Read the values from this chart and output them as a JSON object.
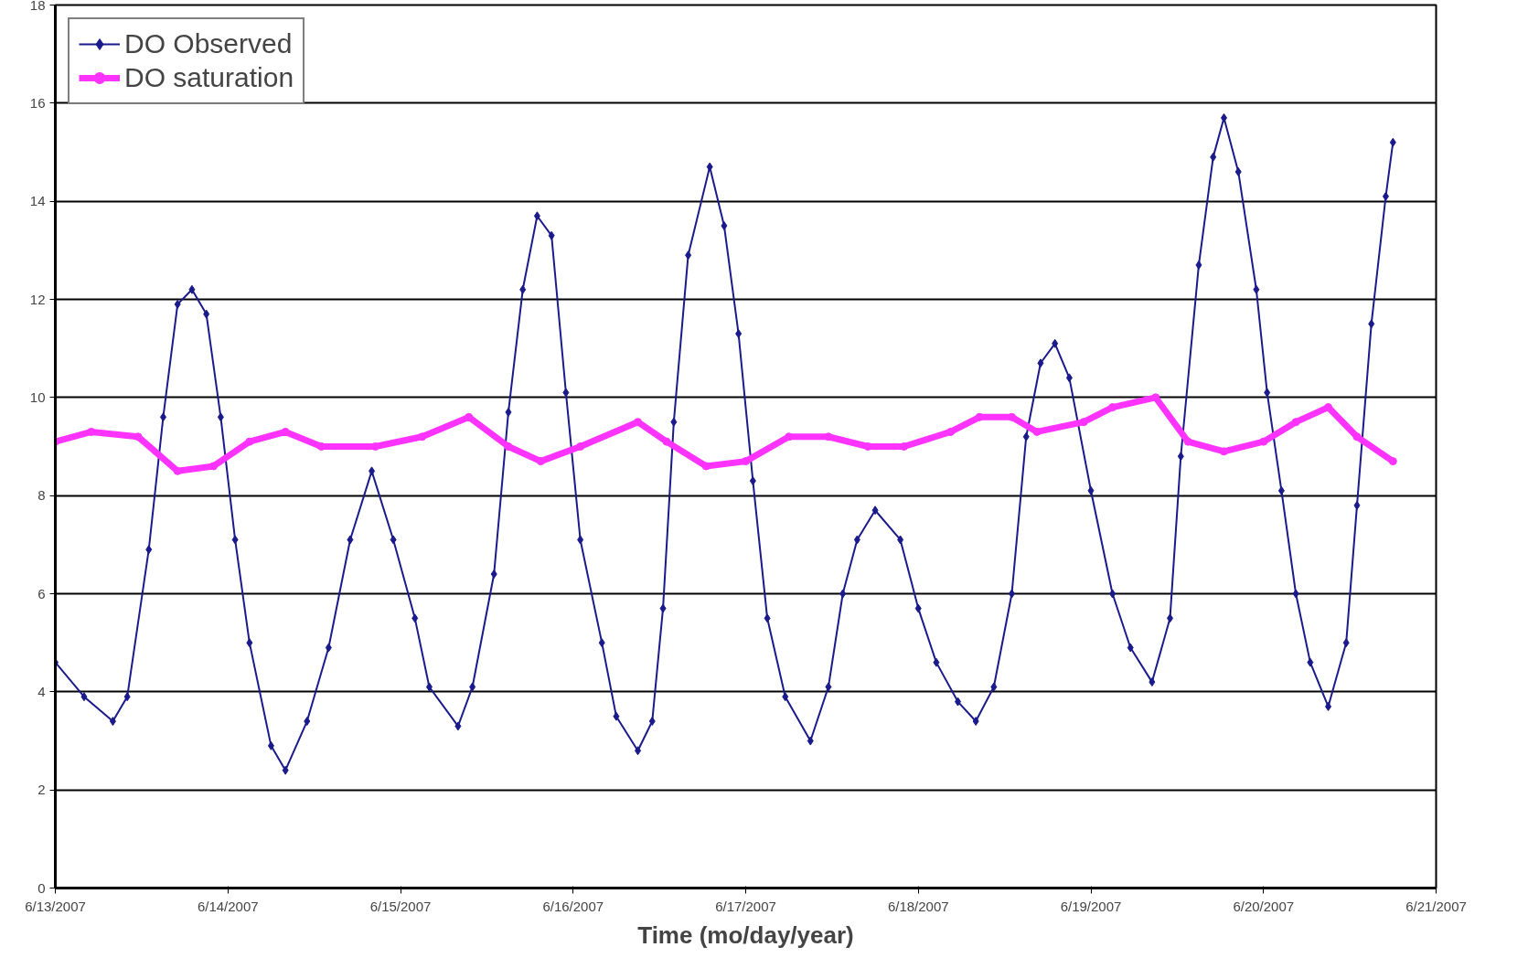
{
  "chart_data": {
    "type": "line",
    "xlabel": "Time (mo/day/year)",
    "xlim": [
      "2007-06-13",
      "2007-06-21"
    ],
    "xticks": [
      {
        "value": "2007-06-13",
        "label": "6/13/2007"
      },
      {
        "value": "2007-06-14",
        "label": "6/14/2007"
      },
      {
        "value": "2007-06-15",
        "label": "6/15/2007"
      },
      {
        "value": "2007-06-16",
        "label": "6/16/2007"
      },
      {
        "value": "2007-06-17",
        "label": "6/17/2007"
      },
      {
        "value": "2007-06-18",
        "label": "6/18/2007"
      },
      {
        "value": "2007-06-19",
        "label": "6/19/2007"
      },
      {
        "value": "2007-06-20",
        "label": "6/20/2007"
      },
      {
        "value": "2007-06-21",
        "label": "6/21/2007"
      }
    ],
    "ylim": [
      0,
      18
    ],
    "yticks": [
      0,
      2,
      4,
      6,
      8,
      10,
      12,
      14,
      16,
      18
    ],
    "grid": "y",
    "legend": "top left",
    "series": [
      {
        "name": "DO Observed",
        "color": "#1a1a8c",
        "marker": "diamond",
        "x": [
          "2007-06-13T00:00",
          "2007-06-13T04:00",
          "2007-06-13T08:00",
          "2007-06-13T10:00",
          "2007-06-13T13:00",
          "2007-06-13T15:00",
          "2007-06-13T17:00",
          "2007-06-13T19:00",
          "2007-06-13T21:00",
          "2007-06-13T23:00",
          "2007-06-14T01:00",
          "2007-06-14T03:00",
          "2007-06-14T06:00",
          "2007-06-14T08:00",
          "2007-06-14T11:00",
          "2007-06-14T14:00",
          "2007-06-14T17:00",
          "2007-06-14T20:00",
          "2007-06-14T23:00",
          "2007-06-15T02:00",
          "2007-06-15T04:00",
          "2007-06-15T08:00",
          "2007-06-15T10:00",
          "2007-06-15T13:00",
          "2007-06-15T15:00",
          "2007-06-15T17:00",
          "2007-06-15T19:00",
          "2007-06-15T21:00",
          "2007-06-15T23:00",
          "2007-06-16T01:00",
          "2007-06-16T04:00",
          "2007-06-16T06:00",
          "2007-06-16T09:00",
          "2007-06-16T11:00",
          "2007-06-16T12:30",
          "2007-06-16T14:00",
          "2007-06-16T16:00",
          "2007-06-16T19:00",
          "2007-06-16T21:00",
          "2007-06-16T23:00",
          "2007-06-17T01:00",
          "2007-06-17T03:00",
          "2007-06-17T05:30",
          "2007-06-17T09:00",
          "2007-06-17T11:30",
          "2007-06-17T13:30",
          "2007-06-17T15:30",
          "2007-06-17T18:00",
          "2007-06-17T21:30",
          "2007-06-18T00:00",
          "2007-06-18T02:30",
          "2007-06-18T05:30",
          "2007-06-18T08:00",
          "2007-06-18T10:30",
          "2007-06-18T13:00",
          "2007-06-18T15:00",
          "2007-06-18T17:00",
          "2007-06-18T19:00",
          "2007-06-18T21:00",
          "2007-06-19T00:00",
          "2007-06-19T03:00",
          "2007-06-19T05:30",
          "2007-06-19T08:30",
          "2007-06-19T11:00",
          "2007-06-19T12:30",
          "2007-06-19T15:00",
          "2007-06-19T17:00",
          "2007-06-19T18:30",
          "2007-06-19T20:30",
          "2007-06-19T23:00",
          "2007-06-20T00:30",
          "2007-06-20T02:30",
          "2007-06-20T04:30",
          "2007-06-20T06:30",
          "2007-06-20T09:00",
          "2007-06-20T11:30",
          "2007-06-20T13:00",
          "2007-06-20T15:00",
          "2007-06-20T17:00",
          "2007-06-20T18:00"
        ],
        "values": [
          4.6,
          3.9,
          3.4,
          3.9,
          6.9,
          9.6,
          11.9,
          12.2,
          11.7,
          9.6,
          7.1,
          5.0,
          2.9,
          2.4,
          3.4,
          4.9,
          7.1,
          8.5,
          7.1,
          5.5,
          4.1,
          3.3,
          4.1,
          6.4,
          9.7,
          12.2,
          13.7,
          13.3,
          10.1,
          7.1,
          5.0,
          3.5,
          2.8,
          3.4,
          5.7,
          9.5,
          12.9,
          14.7,
          13.5,
          11.3,
          8.3,
          5.5,
          3.9,
          3.0,
          4.1,
          6.0,
          7.1,
          7.7,
          7.1,
          5.7,
          4.6,
          3.8,
          3.4,
          4.1,
          6.0,
          9.2,
          10.7,
          11.1,
          10.4,
          8.1,
          6.0,
          4.9,
          4.2,
          5.5,
          8.8,
          12.7,
          14.9,
          15.7,
          14.6,
          12.2,
          10.1,
          8.1,
          6.0,
          4.6,
          3.7,
          5.0,
          7.8,
          11.5,
          14.1,
          15.2
        ]
      },
      {
        "name": "DO saturation",
        "color": "#ff33ff",
        "marker": "circle",
        "x": [
          "2007-06-13T00:00",
          "2007-06-13T05:00",
          "2007-06-13T11:30",
          "2007-06-13T17:00",
          "2007-06-13T22:00",
          "2007-06-14T03:00",
          "2007-06-14T08:00",
          "2007-06-14T13:00",
          "2007-06-14T20:30",
          "2007-06-15T03:00",
          "2007-06-15T09:30",
          "2007-06-15T15:00",
          "2007-06-15T19:30",
          "2007-06-16T01:00",
          "2007-06-16T09:00",
          "2007-06-16T13:00",
          "2007-06-16T18:30",
          "2007-06-17T00:00",
          "2007-06-17T06:00",
          "2007-06-17T11:30",
          "2007-06-17T17:00",
          "2007-06-17T22:00",
          "2007-06-18T04:30",
          "2007-06-18T08:30",
          "2007-06-18T13:00",
          "2007-06-18T16:30",
          "2007-06-18T23:00",
          "2007-06-19T03:00",
          "2007-06-19T09:00",
          "2007-06-19T13:30",
          "2007-06-19T18:30",
          "2007-06-20T00:00",
          "2007-06-20T04:30",
          "2007-06-20T09:00",
          "2007-06-20T13:00",
          "2007-06-20T18:00"
        ],
        "values": [
          9.1,
          9.3,
          9.2,
          8.5,
          8.6,
          9.1,
          9.3,
          9.0,
          9.0,
          9.2,
          9.6,
          9.0,
          8.7,
          9.0,
          9.5,
          9.1,
          8.6,
          8.7,
          9.2,
          9.2,
          9.0,
          9.0,
          9.3,
          9.6,
          9.6,
          9.3,
          9.5,
          9.8,
          10.0,
          9.1,
          8.9,
          9.1,
          9.5,
          9.8,
          9.2,
          8.7
        ]
      }
    ]
  }
}
